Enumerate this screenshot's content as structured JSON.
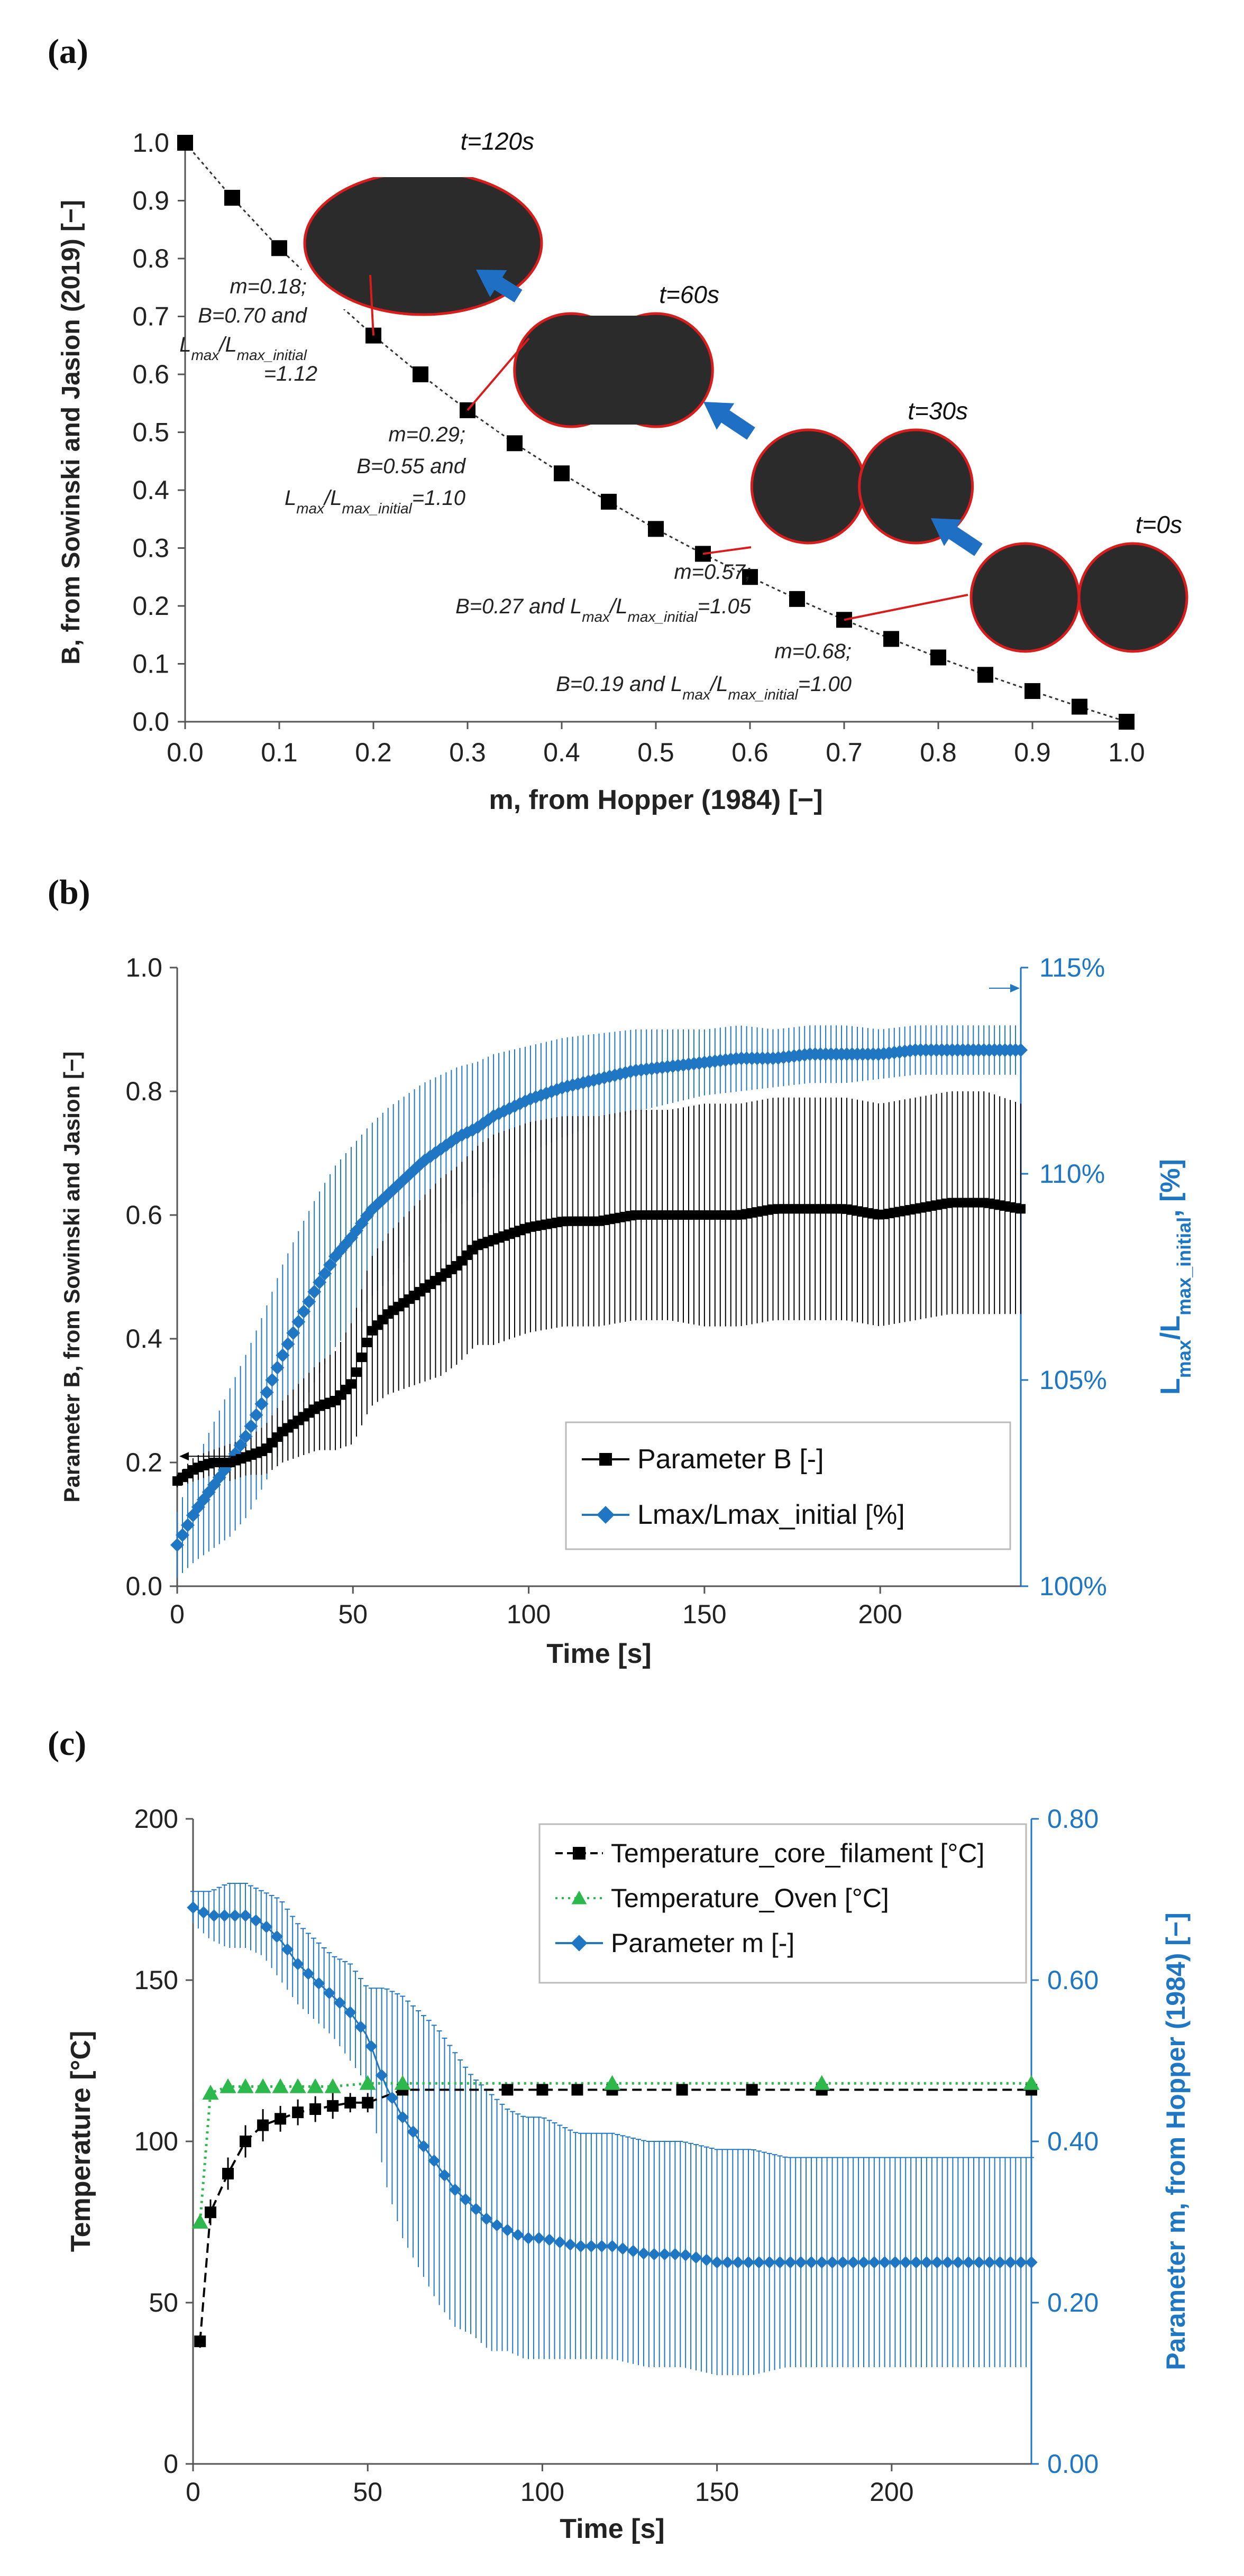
{
  "chart_data": [
    {
      "panel_label": "(a)",
      "type": "line",
      "xlabel": "m, from Hopper (1984) [−]",
      "ylabel": "B, from Sowinski and Jasion (2019) [−]",
      "xlim": [
        0,
        1.0
      ],
      "ylim": [
        0,
        1.0
      ],
      "xticks": [
        "0.0",
        "0.1",
        "0.2",
        "0.3",
        "0.4",
        "0.5",
        "0.6",
        "0.7",
        "0.8",
        "0.9",
        "1.0"
      ],
      "yticks": [
        "0.0",
        "0.1",
        "0.2",
        "0.3",
        "0.4",
        "0.5",
        "0.6",
        "0.7",
        "0.8",
        "0.9",
        "1.0"
      ],
      "grid": false,
      "series": [
        {
          "marker": "square",
          "color": "#000000",
          "x": [
            0.0,
            0.05,
            0.1,
            0.15,
            0.2,
            0.25,
            0.3,
            0.35,
            0.4,
            0.45,
            0.5,
            0.55,
            0.6,
            0.65,
            0.7,
            0.75,
            0.8,
            0.85,
            0.9,
            0.95,
            1.0
          ],
          "y": [
            1.0,
            0.905,
            0.818,
            0.74,
            0.667,
            0.6,
            0.538,
            0.481,
            0.429,
            0.38,
            0.333,
            0.29,
            0.25,
            0.212,
            0.176,
            0.143,
            0.111,
            0.081,
            0.053,
            0.026,
            0.0
          ]
        }
      ],
      "images": [
        {
          "time": "t=120s",
          "shape": "ellipse"
        },
        {
          "time": "t=60s",
          "shape": "peanut"
        },
        {
          "time": "t=30s",
          "shape": "two-lobes"
        },
        {
          "time": "t=0s",
          "shape": "two-circles"
        }
      ],
      "annotations": [
        {
          "lines": [
            "m=0.18;",
            "B=0.70 and",
            "L_max/L_max_initial",
            "=1.12"
          ],
          "x": 0.18,
          "y": 0.67
        },
        {
          "lines": [
            "m=0.29;",
            "B=0.55 and",
            "L_max/L_max_initial=1.10"
          ],
          "x": 0.29,
          "y": 0.55
        },
        {
          "lines": [
            "m=0.57;",
            "B=0.27 and L_max/L_max_initial=1.05"
          ],
          "x": 0.57,
          "y": 0.27
        },
        {
          "lines": [
            "m=0.68;",
            "B=0.19 and L_max/L_max_initial=1.00"
          ],
          "x": 0.68,
          "y": 0.19
        }
      ]
    },
    {
      "panel_label": "(b)",
      "type": "scatter",
      "xlabel": "Time [s]",
      "ylabel": "Parameter B, from Sowinski and Jasion [−]",
      "y2label": "L_max/L_max_initial, [%]",
      "xlim": [
        0,
        240
      ],
      "ylim": [
        0,
        1.0
      ],
      "y2lim": [
        100,
        115
      ],
      "xticks": [
        "0",
        "50",
        "100",
        "150",
        "200"
      ],
      "yticks": [
        "0.0",
        "0.2",
        "0.4",
        "0.6",
        "0.8",
        "1.0"
      ],
      "y2ticks": [
        "100%",
        "105%",
        "110%",
        "115%"
      ],
      "grid": false,
      "legend_position": "bottom-right",
      "series": [
        {
          "name": "Parameter B [-]",
          "axis": "left",
          "color": "#000000",
          "marker": "square",
          "x": [
            0,
            5,
            10,
            15,
            20,
            25,
            30,
            35,
            40,
            45,
            50,
            55,
            60,
            65,
            70,
            75,
            80,
            85,
            90,
            95,
            100,
            110,
            120,
            130,
            140,
            150,
            160,
            170,
            180,
            190,
            200,
            210,
            220,
            230,
            240
          ],
          "y": [
            0.17,
            0.19,
            0.2,
            0.2,
            0.21,
            0.22,
            0.25,
            0.27,
            0.29,
            0.3,
            0.33,
            0.41,
            0.44,
            0.46,
            0.48,
            0.5,
            0.52,
            0.55,
            0.56,
            0.57,
            0.58,
            0.59,
            0.59,
            0.6,
            0.6,
            0.6,
            0.6,
            0.61,
            0.61,
            0.61,
            0.6,
            0.61,
            0.62,
            0.62,
            0.61
          ],
          "err": [
            0.01,
            0.02,
            0.02,
            0.03,
            0.03,
            0.04,
            0.05,
            0.06,
            0.07,
            0.08,
            0.1,
            0.12,
            0.13,
            0.14,
            0.15,
            0.16,
            0.16,
            0.16,
            0.17,
            0.17,
            0.17,
            0.17,
            0.17,
            0.17,
            0.17,
            0.18,
            0.18,
            0.18,
            0.18,
            0.18,
            0.18,
            0.18,
            0.18,
            0.18,
            0.17
          ]
        },
        {
          "name": "Lmax/Lmax_initial [%]",
          "axis": "right",
          "color": "#1f77c4",
          "marker": "diamond",
          "x": [
            0,
            5,
            10,
            15,
            20,
            25,
            30,
            35,
            40,
            45,
            50,
            55,
            60,
            65,
            70,
            75,
            80,
            85,
            90,
            95,
            100,
            110,
            120,
            130,
            140,
            150,
            160,
            170,
            180,
            190,
            200,
            210,
            220,
            230,
            240
          ],
          "y": [
            101.0,
            101.8,
            102.4,
            103.0,
            103.7,
            104.6,
            105.6,
            106.5,
            107.3,
            108.0,
            108.5,
            109.1,
            109.5,
            109.9,
            110.3,
            110.6,
            110.9,
            111.1,
            111.4,
            111.6,
            111.8,
            112.1,
            112.3,
            112.5,
            112.6,
            112.7,
            112.8,
            112.8,
            112.9,
            112.9,
            112.9,
            113.0,
            113.0,
            113.0,
            113.0
          ],
          "err": [
            0.8,
            1.2,
            1.5,
            1.8,
            2.0,
            2.1,
            2.2,
            2.2,
            2.2,
            2.2,
            2.2,
            2.1,
            2.1,
            2.0,
            1.9,
            1.8,
            1.7,
            1.6,
            1.5,
            1.4,
            1.3,
            1.2,
            1.1,
            1.0,
            0.9,
            0.8,
            0.8,
            0.7,
            0.7,
            0.7,
            0.6,
            0.6,
            0.6,
            0.6,
            0.6
          ]
        }
      ]
    },
    {
      "panel_label": "(c)",
      "type": "line",
      "xlabel": "Time [s]",
      "ylabel": "Temperature [°C]",
      "y2label": "Parameter m, from Hopper (1984) [−]",
      "xlim": [
        0,
        240
      ],
      "ylim": [
        0,
        200
      ],
      "y2lim": [
        0,
        0.8
      ],
      "xticks": [
        "0",
        "50",
        "100",
        "150",
        "200"
      ],
      "yticks": [
        "0",
        "50",
        "100",
        "150",
        "200"
      ],
      "y2ticks": [
        "0.00",
        "0.20",
        "0.40",
        "0.60",
        "0.80"
      ],
      "grid": false,
      "legend_position": "top-right",
      "series": [
        {
          "name": "Temperature_core_filament [°C]",
          "axis": "left",
          "color": "#000000",
          "style": "dashed",
          "marker": "square",
          "x": [
            2,
            5,
            10,
            15,
            20,
            25,
            30,
            35,
            40,
            45,
            50,
            60,
            90,
            100,
            110,
            120,
            140,
            160,
            180,
            240
          ],
          "y": [
            38,
            78,
            90,
            100,
            105,
            107,
            109,
            110,
            111,
            112,
            112,
            116,
            116,
            116,
            116,
            116,
            116,
            116,
            116,
            116
          ],
          "err": [
            2,
            4,
            5,
            5,
            5,
            4,
            4,
            4,
            4,
            3,
            3,
            1,
            1,
            1,
            1,
            1,
            1,
            1,
            1,
            1
          ]
        },
        {
          "name": "Temperature_Oven [°C]",
          "axis": "left",
          "color": "#2db84c",
          "style": "dotted",
          "marker": "triangle",
          "x": [
            2,
            5,
            10,
            15,
            20,
            25,
            30,
            35,
            40,
            50,
            60,
            120,
            180,
            240
          ],
          "y": [
            75,
            115,
            117,
            117,
            117,
            117,
            117,
            117,
            117,
            118,
            118,
            118,
            118,
            118
          ]
        },
        {
          "name": "Parameter m [-]",
          "axis": "right",
          "color": "#1f77c4",
          "marker": "diamond",
          "x": [
            0,
            5,
            10,
            15,
            20,
            25,
            30,
            35,
            40,
            45,
            50,
            55,
            60,
            65,
            70,
            75,
            80,
            85,
            90,
            95,
            100,
            110,
            120,
            130,
            140,
            150,
            160,
            170,
            180,
            190,
            200,
            210,
            220,
            230,
            240
          ],
          "y": [
            0.69,
            0.68,
            0.68,
            0.68,
            0.67,
            0.65,
            0.62,
            0.6,
            0.58,
            0.56,
            0.53,
            0.47,
            0.43,
            0.4,
            0.37,
            0.34,
            0.32,
            0.3,
            0.29,
            0.28,
            0.28,
            0.27,
            0.27,
            0.26,
            0.26,
            0.25,
            0.25,
            0.25,
            0.25,
            0.25,
            0.25,
            0.25,
            0.25,
            0.25,
            0.25
          ],
          "err": [
            0.02,
            0.03,
            0.04,
            0.04,
            0.04,
            0.05,
            0.05,
            0.05,
            0.05,
            0.06,
            0.06,
            0.12,
            0.15,
            0.16,
            0.17,
            0.17,
            0.16,
            0.16,
            0.15,
            0.15,
            0.15,
            0.14,
            0.14,
            0.14,
            0.14,
            0.14,
            0.14,
            0.13,
            0.13,
            0.13,
            0.13,
            0.13,
            0.13,
            0.13,
            0.13
          ]
        }
      ]
    }
  ]
}
